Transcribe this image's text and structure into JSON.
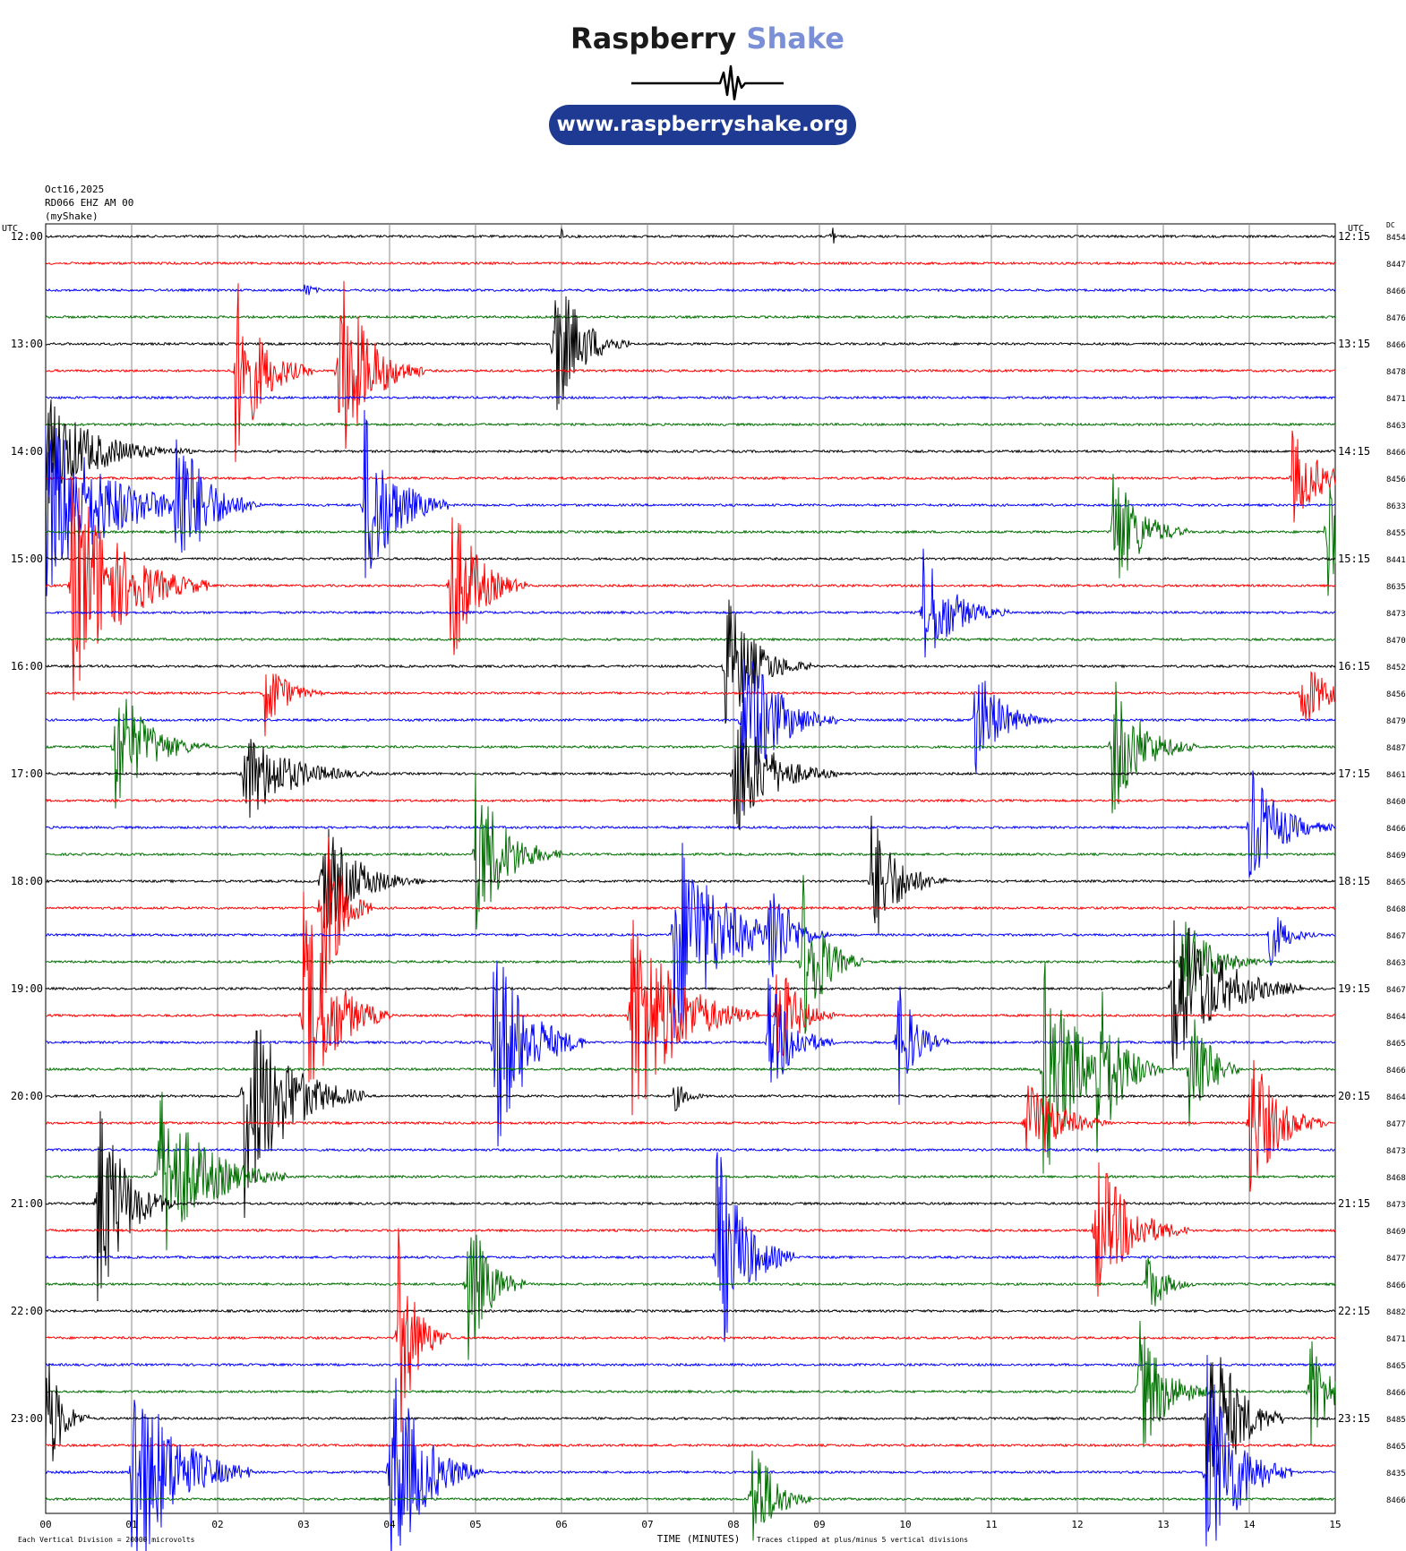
{
  "logo": {
    "brand": "Raspberry",
    "accent_word": "Shake",
    "url": "www.raspberryshake.org",
    "accent_color": "#7b8fd6",
    "pill_color": "#1f3a93"
  },
  "header": {
    "date": "Oct16,2025",
    "station": "RD066 EHZ AM 00",
    "network": "(myShake)"
  },
  "chart_data": {
    "type": "helicorder",
    "title": "",
    "xlabel": "TIME (MINUTES)",
    "x_ticks": [
      "00",
      "01",
      "02",
      "03",
      "04",
      "05",
      "06",
      "07",
      "08",
      "09",
      "10",
      "11",
      "12",
      "13",
      "14",
      "15"
    ],
    "xlim": [
      0,
      15
    ],
    "left_axis_label": "UTC",
    "right_axis_label": "UTC",
    "dc_label": "DC",
    "left_time_labels": [
      "12:00",
      "13:00",
      "14:00",
      "15:00",
      "16:00",
      "17:00",
      "18:00",
      "19:00",
      "20:00",
      "21:00",
      "22:00",
      "23:00"
    ],
    "right_time_labels": [
      "12:15",
      "13:15",
      "14:15",
      "15:15",
      "16:15",
      "17:15",
      "18:15",
      "19:15",
      "20:15",
      "21:15",
      "22:15",
      "23:15"
    ],
    "trace_colors": [
      "#000000",
      "#ff0000",
      "#0000ff",
      "#007000"
    ],
    "dc_offsets": [
      8454,
      8447,
      8466,
      8476,
      8466,
      8478,
      8471,
      8463,
      8466,
      8456,
      8633,
      8455,
      8441,
      8635,
      8473,
      8470,
      8452,
      8456,
      8479,
      8487,
      8461,
      8460,
      8466,
      8469,
      8465,
      8468,
      8467,
      8463,
      8467,
      8464,
      8465,
      8466,
      8464,
      8477,
      8473,
      8468,
      8473,
      8469,
      8477,
      8466,
      8482,
      8471,
      8465,
      8466,
      8485,
      8465,
      8435,
      8466
    ],
    "events": [
      {
        "row": 0,
        "minute": 9.15,
        "amp": 45,
        "dur": 0.05
      },
      {
        "row": 0,
        "minute": 6.0,
        "amp": 25,
        "dur": 0.03
      },
      {
        "row": 2,
        "minute": 3.0,
        "amp": 10,
        "dur": 0.4
      },
      {
        "row": 4,
        "minute": 5.9,
        "amp": 100,
        "dur": 0.9
      },
      {
        "row": 5,
        "minute": 2.2,
        "amp": 115,
        "dur": 0.9
      },
      {
        "row": 5,
        "minute": 3.4,
        "amp": 130,
        "dur": 1.0
      },
      {
        "row": 8,
        "minute": 0.0,
        "amp": 65,
        "dur": 1.7
      },
      {
        "row": 9,
        "minute": 14.5,
        "amp": 55,
        "dur": 1.0
      },
      {
        "row": 10,
        "minute": 0.0,
        "amp": 110,
        "dur": 2.1
      },
      {
        "row": 10,
        "minute": 1.5,
        "amp": 110,
        "dur": 1.0
      },
      {
        "row": 10,
        "minute": 3.7,
        "amp": 115,
        "dur": 1.0
      },
      {
        "row": 11,
        "minute": 12.4,
        "amp": 85,
        "dur": 0.9
      },
      {
        "row": 11,
        "minute": 14.9,
        "amp": 95,
        "dur": 0.9
      },
      {
        "row": 13,
        "minute": 0.3,
        "amp": 140,
        "dur": 1.6
      },
      {
        "row": 13,
        "minute": 4.7,
        "amp": 110,
        "dur": 0.9
      },
      {
        "row": 14,
        "minute": 10.2,
        "amp": 75,
        "dur": 1.0
      },
      {
        "row": 16,
        "minute": 7.9,
        "amp": 90,
        "dur": 1.0
      },
      {
        "row": 17,
        "minute": 2.55,
        "amp": 50,
        "dur": 0.7
      },
      {
        "row": 17,
        "minute": 14.6,
        "amp": 50,
        "dur": 0.8
      },
      {
        "row": 18,
        "minute": 8.1,
        "amp": 110,
        "dur": 1.1
      },
      {
        "row": 18,
        "minute": 10.8,
        "amp": 70,
        "dur": 0.9
      },
      {
        "row": 19,
        "minute": 0.8,
        "amp": 85,
        "dur": 1.1
      },
      {
        "row": 19,
        "minute": 12.4,
        "amp": 85,
        "dur": 1.0
      },
      {
        "row": 20,
        "minute": 2.3,
        "amp": 60,
        "dur": 1.5
      },
      {
        "row": 20,
        "minute": 8.0,
        "amp": 85,
        "dur": 1.2
      },
      {
        "row": 22,
        "minute": 14.0,
        "amp": 75,
        "dur": 1.0
      },
      {
        "row": 23,
        "minute": 5.0,
        "amp": 100,
        "dur": 1.0
      },
      {
        "row": 24,
        "minute": 3.2,
        "amp": 75,
        "dur": 1.2
      },
      {
        "row": 24,
        "minute": 9.6,
        "amp": 85,
        "dur": 0.9
      },
      {
        "row": 25,
        "minute": 3.2,
        "amp": 140,
        "dur": 0.6
      },
      {
        "row": 26,
        "minute": 7.3,
        "amp": 140,
        "dur": 1.5
      },
      {
        "row": 26,
        "minute": 8.4,
        "amp": 90,
        "dur": 0.7
      },
      {
        "row": 26,
        "minute": 14.2,
        "amp": 45,
        "dur": 0.6
      },
      {
        "row": 27,
        "minute": 8.8,
        "amp": 110,
        "dur": 0.7
      },
      {
        "row": 27,
        "minute": 13.2,
        "amp": 60,
        "dur": 1.0
      },
      {
        "row": 28,
        "minute": 13.1,
        "amp": 110,
        "dur": 1.5
      },
      {
        "row": 29,
        "minute": 6.8,
        "amp": 140,
        "dur": 1.5
      },
      {
        "row": 29,
        "minute": 3.0,
        "amp": 140,
        "dur": 1.0
      },
      {
        "row": 29,
        "minute": 8.5,
        "amp": 75,
        "dur": 0.7
      },
      {
        "row": 30,
        "minute": 5.2,
        "amp": 140,
        "dur": 1.1
      },
      {
        "row": 30,
        "minute": 9.9,
        "amp": 85,
        "dur": 0.6
      },
      {
        "row": 30,
        "minute": 8.4,
        "amp": 80,
        "dur": 0.8
      },
      {
        "row": 31,
        "minute": 11.6,
        "amp": 135,
        "dur": 1.2
      },
      {
        "row": 31,
        "minute": 12.2,
        "amp": 130,
        "dur": 0.8
      },
      {
        "row": 31,
        "minute": 13.3,
        "amp": 110,
        "dur": 0.6
      },
      {
        "row": 32,
        "minute": 2.3,
        "amp": 140,
        "dur": 1.4
      },
      {
        "row": 32,
        "minute": 7.3,
        "amp": 20,
        "dur": 0.5
      },
      {
        "row": 33,
        "minute": 11.4,
        "amp": 70,
        "dur": 1.0
      },
      {
        "row": 33,
        "minute": 14.0,
        "amp": 100,
        "dur": 0.9
      },
      {
        "row": 35,
        "minute": 1.3,
        "amp": 110,
        "dur": 1.5
      },
      {
        "row": 36,
        "minute": 0.6,
        "amp": 140,
        "dur": 0.9
      },
      {
        "row": 37,
        "minute": 12.2,
        "amp": 100,
        "dur": 1.1
      },
      {
        "row": 38,
        "minute": 7.8,
        "amp": 140,
        "dur": 0.9
      },
      {
        "row": 39,
        "minute": 4.9,
        "amp": 100,
        "dur": 0.7
      },
      {
        "row": 39,
        "minute": 12.8,
        "amp": 45,
        "dur": 0.6
      },
      {
        "row": 41,
        "minute": 4.1,
        "amp": 130,
        "dur": 0.6
      },
      {
        "row": 43,
        "minute": 12.7,
        "amp": 90,
        "dur": 0.9
      },
      {
        "row": 43,
        "minute": 14.7,
        "amp": 80,
        "dur": 0.6
      },
      {
        "row": 44,
        "minute": 0.0,
        "amp": 90,
        "dur": 0.5
      },
      {
        "row": 44,
        "minute": 13.5,
        "amp": 140,
        "dur": 0.9
      },
      {
        "row": 46,
        "minute": 1.0,
        "amp": 140,
        "dur": 1.4
      },
      {
        "row": 46,
        "minute": 4.0,
        "amp": 140,
        "dur": 1.1
      },
      {
        "row": 46,
        "minute": 13.5,
        "amp": 140,
        "dur": 1.0
      },
      {
        "row": 47,
        "minute": 8.2,
        "amp": 90,
        "dur": 0.7
      }
    ],
    "footer_left": "Each Vertical Division = 20000 microvolts",
    "footer_right": "Traces clipped at plus/minus 5 vertical divisions",
    "grid": true
  }
}
